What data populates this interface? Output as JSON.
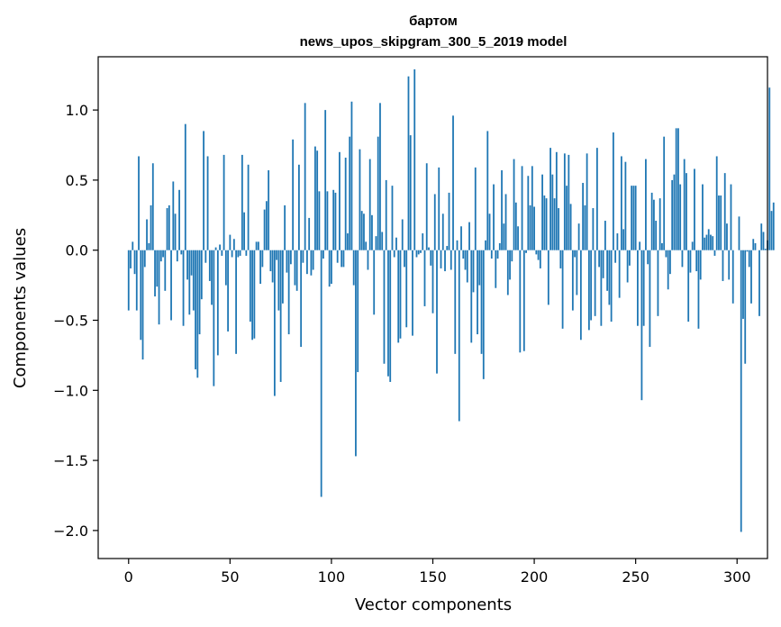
{
  "chart_data": {
    "type": "bar",
    "title_line1": "бартом",
    "title_line2": "news_upos_skipgram_300_5_2019 model",
    "xlabel": "Vector components",
    "ylabel": "Components values",
    "xlim": [
      -15,
      315
    ],
    "ylim": [
      -2.2,
      1.38
    ],
    "xticks": [
      0,
      50,
      100,
      150,
      200,
      250,
      300
    ],
    "xtick_labels": [
      "0",
      "50",
      "100",
      "150",
      "200",
      "250",
      "300"
    ],
    "yticks": [
      1.0,
      0.5,
      0.0,
      -0.5,
      -1.0,
      -1.5,
      -2.0
    ],
    "ytick_labels": [
      "1.0",
      "0.5",
      "0.0",
      "−0.5",
      "−1.0",
      "−1.5",
      "−2.0"
    ],
    "bar_color": "#1f77b4",
    "values": [
      -0.43,
      -0.13,
      0.06,
      -0.17,
      -0.43,
      0.67,
      -0.64,
      -0.78,
      -0.12,
      0.22,
      0.05,
      0.32,
      0.62,
      -0.33,
      -0.26,
      -0.53,
      -0.08,
      -0.05,
      -0.29,
      0.3,
      0.32,
      -0.5,
      0.49,
      0.26,
      -0.08,
      0.43,
      -0.03,
      -0.54,
      0.9,
      -0.21,
      -0.46,
      -0.18,
      -0.43,
      -0.85,
      -0.91,
      -0.6,
      -0.35,
      0.85,
      -0.09,
      0.67,
      -0.22,
      -0.39,
      -0.97,
      0.02,
      -0.75,
      0.04,
      -0.04,
      0.68,
      -0.25,
      -0.58,
      0.11,
      -0.05,
      0.08,
      -0.74,
      -0.05,
      -0.04,
      0.68,
      0.27,
      -0.04,
      0.61,
      -0.51,
      -0.64,
      -0.63,
      0.06,
      0.06,
      -0.24,
      -0.12,
      0.29,
      0.35,
      0.57,
      -0.15,
      -0.23,
      -1.04,
      -0.07,
      -0.43,
      -0.94,
      -0.38,
      0.32,
      -0.16,
      -0.6,
      -0.1,
      0.79,
      -0.25,
      -0.29,
      0.61,
      -0.69,
      -0.09,
      1.05,
      -0.17,
      0.23,
      -0.18,
      -0.14,
      0.74,
      0.71,
      0.42,
      -1.76,
      -0.06,
      1.0,
      0.42,
      -0.26,
      -0.24,
      0.43,
      0.41,
      -0.09,
      0.7,
      -0.12,
      -0.12,
      0.66,
      0.12,
      0.81,
      1.06,
      -0.25,
      -1.47,
      -0.87,
      0.72,
      0.28,
      0.26,
      0.06,
      -0.14,
      0.65,
      0.25,
      -0.46,
      0.1,
      0.81,
      1.05,
      0.13,
      -0.81,
      0.5,
      -0.9,
      -0.94,
      0.46,
      -0.05,
      0.09,
      -0.66,
      -0.63,
      0.22,
      -0.12,
      -0.55,
      1.24,
      0.82,
      -0.61,
      1.29,
      -0.05,
      -0.03,
      -0.02,
      0.12,
      -0.4,
      0.62,
      0.02,
      -0.11,
      -0.45,
      0.4,
      -0.88,
      0.59,
      -0.13,
      0.26,
      -0.15,
      0.03,
      0.41,
      -0.14,
      0.96,
      -0.74,
      0.07,
      -1.22,
      0.17,
      -0.06,
      -0.14,
      -0.23,
      0.2,
      -0.66,
      -0.3,
      0.59,
      -0.6,
      -0.25,
      -0.74,
      -0.92,
      0.07,
      0.85,
      0.26,
      -0.06,
      0.47,
      -0.27,
      -0.06,
      0.05,
      0.57,
      0.19,
      0.4,
      -0.32,
      -0.21,
      -0.08,
      0.65,
      0.34,
      0.17,
      -0.73,
      0.6,
      -0.72,
      -0.02,
      0.53,
      0.32,
      0.6,
      0.31,
      -0.03,
      -0.07,
      -0.13,
      0.54,
      0.39,
      0.37,
      -0.39,
      0.73,
      0.54,
      0.37,
      0.7,
      0.3,
      -0.13,
      -0.56,
      0.69,
      0.46,
      0.68,
      0.33,
      -0.43,
      -0.05,
      -0.32,
      0.19,
      -0.64,
      0.48,
      0.32,
      0.69,
      -0.57,
      -0.5,
      0.3,
      -0.47,
      0.73,
      -0.12,
      -0.54,
      -0.2,
      0.21,
      -0.29,
      -0.39,
      -0.51,
      0.84,
      -0.09,
      0.12,
      -0.34,
      0.67,
      0.15,
      0.63,
      -0.23,
      -0.11,
      0.46,
      0.46,
      0.46,
      -0.54,
      0.06,
      -1.07,
      -0.54,
      0.65,
      -0.1,
      -0.69,
      0.41,
      0.36,
      0.21,
      -0.47,
      0.37,
      0.05,
      0.81,
      -0.05,
      -0.28,
      -0.17,
      0.5,
      0.54,
      0.87,
      0.87,
      0.47,
      -0.12,
      0.65,
      0.55,
      -0.51,
      -0.16,
      0.06,
      0.58,
      -0.15,
      -0.56,
      -0.21,
      0.47,
      0.09,
      0.11,
      0.15,
      0.11,
      0.1,
      -0.04,
      0.67,
      0.39,
      0.39,
      -0.22,
      0.55,
      0.19,
      -0.21,
      0.47,
      -0.38,
      0.0,
      0.0,
      0.24,
      -2.01,
      -0.49,
      -0.81,
      -0.01,
      -0.12,
      -0.38,
      0.08,
      0.05,
      0.0,
      -0.47,
      0.19,
      0.13,
      0.01,
      0.07,
      1.16,
      0.28,
      0.34
    ]
  }
}
